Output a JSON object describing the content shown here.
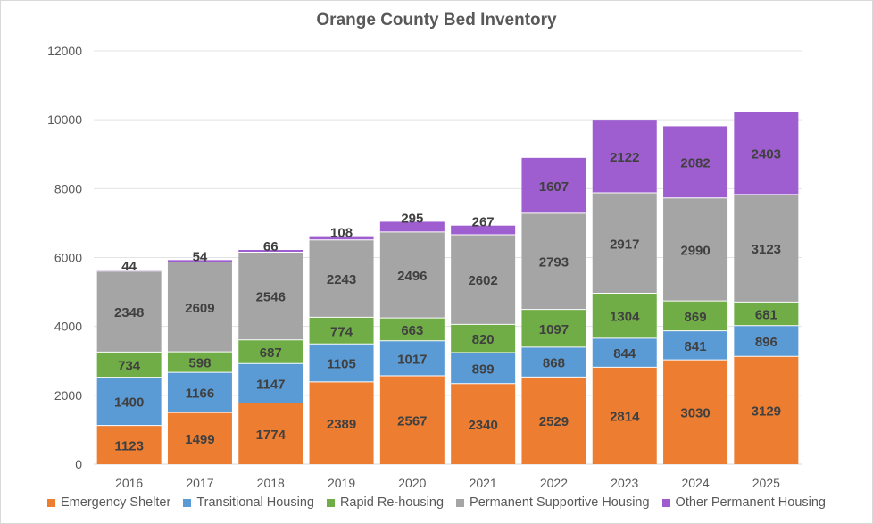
{
  "chart_data": {
    "type": "bar",
    "stacked": true,
    "title": "Orange County Bed Inventory",
    "xlabel": "",
    "ylabel": "",
    "ylim": [
      0,
      12000
    ],
    "yticks": [
      0,
      2000,
      4000,
      6000,
      8000,
      10000,
      12000
    ],
    "grid": true,
    "legend_position": "bottom",
    "categories": [
      "2016",
      "2017",
      "2018",
      "2019",
      "2020",
      "2021",
      "2022",
      "2023",
      "2024",
      "2025"
    ],
    "series": [
      {
        "name": "Emergency Shelter",
        "color": "#ed7d31",
        "values": [
          1123,
          1499,
          1774,
          2389,
          2567,
          2340,
          2529,
          2814,
          3030,
          3129
        ]
      },
      {
        "name": "Transitional Housing",
        "color": "#5b9bd5",
        "values": [
          1400,
          1166,
          1147,
          1105,
          1017,
          899,
          868,
          844,
          841,
          896
        ]
      },
      {
        "name": "Rapid Re-housing",
        "color": "#70ad47",
        "values": [
          734,
          598,
          687,
          774,
          663,
          820,
          1097,
          1304,
          869,
          681
        ]
      },
      {
        "name": "Permanent Supportive Housing",
        "color": "#a5a5a5",
        "values": [
          2348,
          2609,
          2546,
          2243,
          2496,
          2602,
          2793,
          2917,
          2990,
          3123
        ]
      },
      {
        "name": "Other Permanent Housing",
        "color": "#9e5ecf",
        "values": [
          44,
          54,
          66,
          108,
          295,
          267,
          1607,
          2122,
          2082,
          2403
        ]
      }
    ]
  }
}
